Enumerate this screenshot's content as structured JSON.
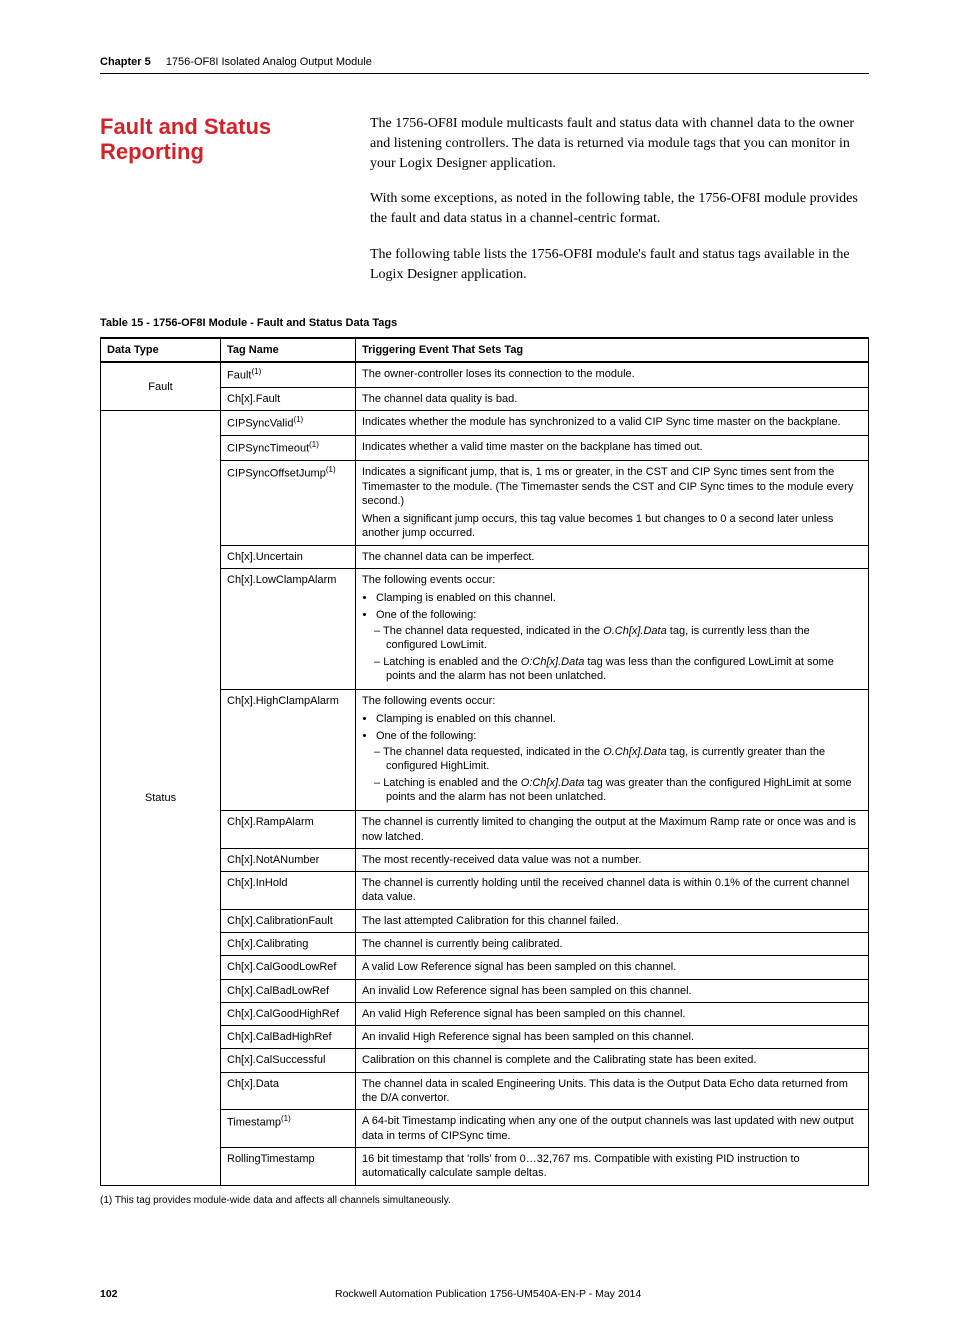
{
  "header": {
    "chapter_label": "Chapter 5",
    "chapter_title": "1756-OF8I Isolated Analog Output Module"
  },
  "hero": {
    "title": "Fault and Status Reporting",
    "paragraphs": [
      "The 1756-OF8I module multicasts fault and status data with channel data to the owner and listening controllers. The data is returned via module tags that you can monitor in your Logix Designer application.",
      "With some exceptions, as noted in the following table, the 1756-OF8I module provides the fault and data status in a channel-centric format.",
      "The following table lists the 1756-OF8I module's fault and status tags available in the Logix Designer application."
    ]
  },
  "table": {
    "caption": "Table 15 - 1756-OF8I Module - Fault and Status Data Tags",
    "columns": [
      "Data Type",
      "Tag Name",
      "Triggering Event That Sets Tag"
    ],
    "group_labels": {
      "fault": "Fault",
      "status": "Status"
    },
    "rows": {
      "fault1_name": "Fault",
      "fault1_sup": "(1)",
      "fault1_desc": "The owner-controller loses its connection to the module.",
      "fault2_name": "Ch[x].Fault",
      "fault2_desc": "The channel data quality is bad.",
      "s1_name": "CIPSyncValid",
      "s1_sup": "(1)",
      "s1_desc": "Indicates whether the module has synchronized to a valid CIP Sync time master on the backplane.",
      "s2_name": "CIPSyncTimeout",
      "s2_sup": "(1)",
      "s2_desc": "Indicates whether a valid time master on the backplane has timed out.",
      "s3_name": "CIPSyncOffsetJump",
      "s3_sup": "(1)",
      "s3_desc_p1": "Indicates a significant jump, that is, 1 ms or greater, in the CST and CIP Sync times sent from the Timemaster to the module. (The Timemaster sends the CST and CIP Sync times to the module every second.)",
      "s3_desc_p2": "When a significant jump occurs, this tag value becomes 1 but changes to 0 a second later unless another jump occurred.",
      "s4_name": "Ch[x].Uncertain",
      "s4_desc": "The channel data can be imperfect.",
      "s5_name": "Ch[x].LowClampAlarm",
      "s5_intro": "The following events occur:",
      "s5_b1": "Clamping is enabled on this channel.",
      "s5_b2": "One of the following:",
      "s5_b2a_pre": "The channel data requested, indicated in the ",
      "s5_b2a_it": "O.Ch[x].Data",
      "s5_b2a_post": " tag, is currently less than the configured LowLimit.",
      "s5_b2b_pre": "Latching is enabled and the ",
      "s5_b2b_it": "O:Ch[x].Data",
      "s5_b2b_post": " tag was less than the configured LowLimit at some points and the alarm has not been unlatched.",
      "s6_name": "Ch[x].HighClampAlarm",
      "s6_intro": "The following events occur:",
      "s6_b1": "Clamping is enabled on this channel.",
      "s6_b2": "One of the following:",
      "s6_b2a_pre": "The channel data requested, indicated in the ",
      "s6_b2a_it": "O.Ch[x].Data",
      "s6_b2a_post": " tag, is currently greater than the configured HighLimit.",
      "s6_b2b_pre": "Latching is enabled and the ",
      "s6_b2b_it": "O:Ch[x].Data",
      "s6_b2b_post": " tag was greater than the configured HighLimit at some points and the alarm has not been unlatched.",
      "s7_name": "Ch[x].RampAlarm",
      "s7_desc": "The channel is currently limited to changing the output at the Maximum Ramp rate or once was and is now latched.",
      "s8_name": "Ch[x].NotANumber",
      "s8_desc": "The most recently-received data value was not a number.",
      "s9_name": "Ch[x].InHold",
      "s9_desc": "The channel is currently holding until the received channel data is within 0.1% of the current channel data value.",
      "s10_name": "Ch[x].CalibrationFault",
      "s10_desc": "The last attempted Calibration for this channel failed.",
      "s11_name": "Ch[x].Calibrating",
      "s11_desc": "The channel is currently being calibrated.",
      "s12_name": "Ch[x].CalGoodLowRef",
      "s12_desc": "A valid Low Reference signal has been sampled on this channel.",
      "s13_name": "Ch[x].CalBadLowRef",
      "s13_desc": "An invalid Low Reference signal has been sampled on this channel.",
      "s14_name": "Ch[x].CalGoodHighRef",
      "s14_desc": "An valid High Reference signal has been sampled on this channel.",
      "s15_name": "Ch[x].CalBadHighRef",
      "s15_desc": "An invalid High Reference signal has been sampled on this channel.",
      "s16_name": "Ch[x].CalSuccessful",
      "s16_desc": "Calibration on this channel is complete and the Calibrating state has been exited.",
      "s17_name": "Ch[x].Data",
      "s17_desc": "The channel data in scaled Engineering Units. This data is the Output Data Echo data returned from the D/A convertor.",
      "s18_name": "Timestamp",
      "s18_sup": "(1)",
      "s18_desc": "A 64-bit Timestamp indicating when any one of the output channels was last updated with new output data in terms of CIPSync time.",
      "s19_name": "RollingTimestamp",
      "s19_desc": "16 bit timestamp that 'rolls' from 0…32,767 ms. Compatible with existing PID instruction to automatically calculate sample deltas."
    }
  },
  "footnote": "(1)   This tag provides module-wide data and affects all channels simultaneously.",
  "footer": {
    "page_number": "102",
    "publication": "Rockwell Automation Publication 1756-UM540A-EN-P - May 2014"
  }
}
